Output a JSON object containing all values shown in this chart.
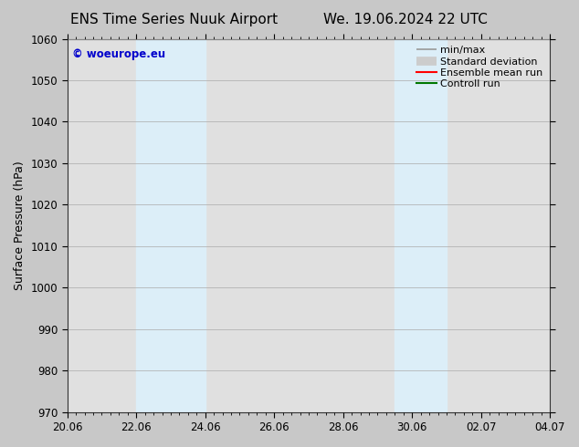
{
  "title_left": "ENS Time Series Nuuk Airport",
  "title_right": "We. 19.06.2024 22 UTC",
  "ylabel": "Surface Pressure (hPa)",
  "ylim": [
    970,
    1060
  ],
  "yticks": [
    970,
    980,
    990,
    1000,
    1010,
    1020,
    1030,
    1040,
    1050,
    1060
  ],
  "xtick_labels": [
    "20.06",
    "22.06",
    "24.06",
    "26.06",
    "28.06",
    "30.06",
    "02.07",
    "04.07"
  ],
  "xtick_positions": [
    0,
    2,
    4,
    6,
    8,
    10,
    12,
    14
  ],
  "xlim": [
    0,
    14
  ],
  "shaded_bands": [
    {
      "x_start": 2,
      "x_end": 4
    },
    {
      "x_start": 9.5,
      "x_end": 11
    }
  ],
  "band_color": "#dceef8",
  "watermark_text": "© woeurope.eu",
  "watermark_color": "#0000cc",
  "legend_entries": [
    {
      "label": "min/max",
      "color": "#999999",
      "lw": 1.2
    },
    {
      "label": "Standard deviation",
      "color": "#cccccc",
      "lw": 8
    },
    {
      "label": "Ensemble mean run",
      "color": "#ff0000",
      "lw": 1.5
    },
    {
      "label": "Controll run",
      "color": "#007700",
      "lw": 1.5
    }
  ],
  "plot_bg": "#e8e8e8",
  "fig_bg": "#d0d0d0",
  "title_fontsize": 11,
  "ylabel_fontsize": 9,
  "tick_fontsize": 8.5,
  "legend_fontsize": 8
}
